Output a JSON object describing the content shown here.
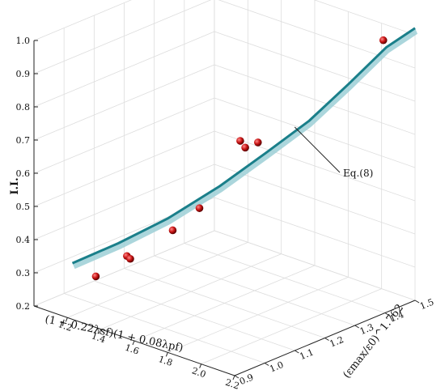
{
  "chart_data": {
    "type": "scatter",
    "title": "",
    "zlabel": "I.I.",
    "xlabel": "(1 + 0.22λsf)(1 + 0.08λpf)",
    "ylabel": "(εmax/ε0)^1.762",
    "xlim": [
      1.0,
      2.2
    ],
    "ylim": [
      0.9,
      1.5
    ],
    "zlim": [
      0.2,
      1.0
    ],
    "x_ticks": [
      "1.2",
      "1.4",
      "1.6",
      "1.8",
      "2.0",
      "2.2"
    ],
    "y_ticks": [
      "0.9",
      "1.0",
      "1.1",
      "1.2",
      "1.3",
      "1.4",
      "1.5"
    ],
    "z_ticks": [
      "0.2",
      "0.3",
      "0.4",
      "0.5",
      "0.6",
      "0.7",
      "0.8",
      "0.9",
      "1.0"
    ],
    "points": [
      {
        "x": 1.1,
        "y": 1.05,
        "z": 0.25
      },
      {
        "x": 1.25,
        "y": 1.07,
        "z": 0.33
      },
      {
        "x": 1.27,
        "y": 1.07,
        "z": 0.325
      },
      {
        "x": 1.38,
        "y": 1.15,
        "z": 0.4
      },
      {
        "x": 1.45,
        "y": 1.2,
        "z": 0.46
      },
      {
        "x": 1.55,
        "y": 1.28,
        "z": 0.65
      },
      {
        "x": 1.58,
        "y": 1.28,
        "z": 0.635
      },
      {
        "x": 1.62,
        "y": 1.3,
        "z": 0.65
      },
      {
        "x": 2.1,
        "y": 1.45,
        "z": 0.985
      }
    ],
    "fit_curve": {
      "name": "Eq.(8)",
      "x": [
        1.05,
        1.2,
        1.35,
        1.5,
        1.65,
        1.8,
        1.95,
        2.1,
        2.2
      ],
      "y": [
        1.0,
        1.07,
        1.15,
        1.24,
        1.31,
        1.37,
        1.42,
        1.46,
        1.5
      ],
      "z": [
        0.3,
        0.36,
        0.43,
        0.52,
        0.62,
        0.72,
        0.84,
        0.96,
        1.02
      ]
    },
    "annotation": "Eq.(8)",
    "grid": true,
    "colors": {
      "points": "#c81414",
      "curve": "#1a7f8a",
      "curve_light": "#9ccfd6"
    }
  }
}
